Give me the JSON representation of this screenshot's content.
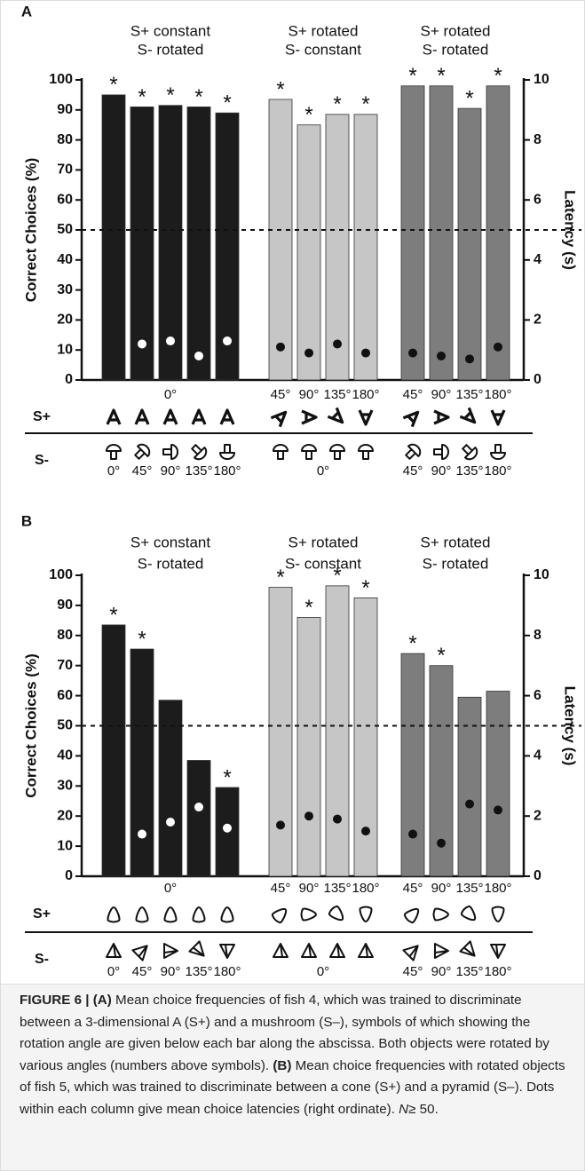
{
  "chart_data": [
    {
      "type": "bar",
      "panel_label": "A",
      "ylabel": "Correct Choices (%)",
      "y2label": "Latency (s)",
      "ylim": [
        0,
        100
      ],
      "yticks": [
        0,
        10,
        20,
        30,
        40,
        50,
        60,
        70,
        80,
        90,
        100
      ],
      "y2lim": [
        0,
        10
      ],
      "y2ticks": [
        0,
        2,
        4,
        6,
        8,
        10
      ],
      "reference_line": 50,
      "significance_marker": "*",
      "splus_label": "S+",
      "sminus_label": "S-",
      "groups": [
        {
          "title_lines": [
            "S+ constant",
            "S- rotated"
          ],
          "color": "#1c1c1c",
          "dot_color": "#ffffff",
          "values": [
            95,
            91,
            91.5,
            91,
            89
          ],
          "latency": [
            null,
            1.2,
            1.3,
            0.8,
            1.3
          ],
          "significant": [
            true,
            true,
            true,
            true,
            true
          ],
          "top_labels": [
            "0°"
          ],
          "bottom_labels": [
            "0°",
            "45°",
            "90°",
            "135°",
            "180°"
          ]
        },
        {
          "title_lines": [
            "S+ rotated",
            "S- constant"
          ],
          "color": "#c6c6c6",
          "dot_color": "#111111",
          "values": [
            93.5,
            85,
            88.5,
            88.5
          ],
          "latency": [
            1.1,
            0.9,
            1.2,
            0.9
          ],
          "significant": [
            true,
            true,
            true,
            true
          ],
          "top_labels": [
            "45°",
            "90°",
            "135°",
            "180°"
          ],
          "bottom_labels": [
            "0°"
          ]
        },
        {
          "title_lines": [
            "S+ rotated",
            "S- rotated"
          ],
          "color": "#7d7d7d",
          "dot_color": "#111111",
          "values": [
            98,
            98,
            90.5,
            98
          ],
          "latency": [
            0.9,
            0.8,
            0.7,
            1.1
          ],
          "significant": [
            true,
            true,
            true,
            true
          ],
          "top_labels": [
            "45°",
            "90°",
            "135°",
            "180°"
          ],
          "bottom_labels": [
            "45°",
            "90°",
            "135°",
            "180°"
          ]
        }
      ]
    },
    {
      "type": "bar",
      "panel_label": "B",
      "ylabel": "Correct Choices (%)",
      "y2label": "Latency (s)",
      "ylim": [
        0,
        100
      ],
      "yticks": [
        0,
        10,
        20,
        30,
        40,
        50,
        60,
        70,
        80,
        90,
        100
      ],
      "y2lim": [
        0,
        10
      ],
      "y2ticks": [
        0,
        2,
        4,
        6,
        8,
        10
      ],
      "reference_line": 50,
      "significance_marker": "*",
      "splus_label": "S+",
      "sminus_label": "S-",
      "groups": [
        {
          "title_lines": [
            "S+ constant",
            "S- rotated"
          ],
          "color": "#1c1c1c",
          "dot_color": "#ffffff",
          "values": [
            83.5,
            75.5,
            58.5,
            38.5,
            29.5
          ],
          "latency": [
            null,
            1.4,
            1.8,
            2.3,
            1.6
          ],
          "significant": [
            true,
            true,
            false,
            false,
            true
          ],
          "top_labels": [
            "0°"
          ],
          "bottom_labels": [
            "0°",
            "45°",
            "90°",
            "135°",
            "180°"
          ]
        },
        {
          "title_lines": [
            "S+ rotated",
            "S- constant"
          ],
          "color": "#c6c6c6",
          "dot_color": "#111111",
          "values": [
            96,
            86,
            96.5,
            92.5
          ],
          "latency": [
            1.7,
            2.0,
            1.9,
            1.5
          ],
          "significant": [
            true,
            true,
            true,
            true
          ],
          "top_labels": [
            "45°",
            "90°",
            "135°",
            "180°"
          ],
          "bottom_labels": [
            "0°"
          ]
        },
        {
          "title_lines": [
            "S+ rotated",
            "S- rotated"
          ],
          "color": "#7d7d7d",
          "dot_color": "#111111",
          "values": [
            74,
            70,
            59.5,
            61.5
          ],
          "latency": [
            1.4,
            1.1,
            2.4,
            2.2
          ],
          "significant": [
            true,
            true,
            false,
            false
          ],
          "top_labels": [
            "45°",
            "90°",
            "135°",
            "180°"
          ],
          "bottom_labels": [
            "45°",
            "90°",
            "135°",
            "180°"
          ]
        }
      ]
    }
  ],
  "caption": [
    {
      "text": "FIGURE 6 | (A)",
      "bold": true
    },
    {
      "text": " Mean choice frequencies of fish 4, which was trained to discriminate between a 3-dimensional A (S+) and a mushroom (S–), symbols of which showing the rotation angle are given below each bar along the abscissa. Both objects were rotated by various angles (numbers above symbols). "
    },
    {
      "text": "(B)",
      "bold": true
    },
    {
      "text": " Mean choice frequencies with rotated objects of fish 5, which was trained to discriminate between a cone (S+) and a pyramid (S–). Dots within each column give mean choice latencies (right ordinate). "
    },
    {
      "text": "N",
      "italic": true
    },
    {
      "text": "≥ 50."
    }
  ]
}
